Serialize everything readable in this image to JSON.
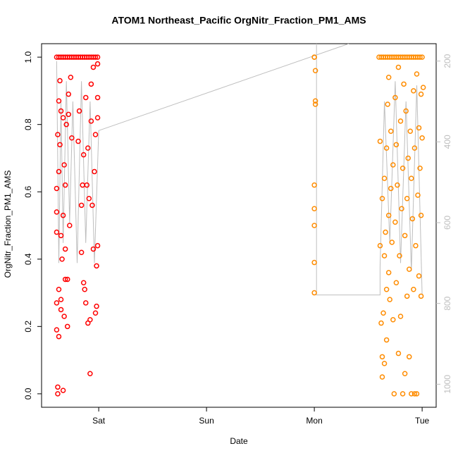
{
  "chart_data": {
    "type": "scatter",
    "title": "ATOM1 Northeast_Pacific OrgNitr_Fraction_PM1_AMS",
    "x_label": "Date",
    "y_label": "OrgNitr_Fraction_PM1_AMS",
    "xlim": [
      -0.53,
      3.13
    ],
    "xticks": [
      {
        "value": 0,
        "label": "Sat"
      },
      {
        "value": 1,
        "label": "Sun"
      },
      {
        "value": 2,
        "label": "Mon"
      },
      {
        "value": 3,
        "label": "Tue"
      }
    ],
    "ylim": [
      -0.04,
      1.04
    ],
    "yticks": [
      {
        "value": 0,
        "label": "0.0"
      },
      0.2,
      0.4,
      0.6,
      0.8,
      {
        "value": 1,
        "label": "1.0"
      }
    ],
    "y2lim": [
      1057,
      157
    ],
    "y2ticks": [
      200,
      400,
      600,
      800,
      1000
    ],
    "series": [
      {
        "type": "line",
        "axis": "y2",
        "color": "#bebebe",
        "x": [
          -0.39,
          -0.37,
          -0.35,
          -0.33,
          -0.3,
          -0.27,
          -0.24,
          -0.2,
          -0.16,
          -0.12,
          -0.08,
          -0.04,
          0,
          2.32,
          null,
          2.02,
          2.02,
          2.61,
          2.61,
          2.65,
          2.7,
          2.75,
          2.8,
          2.85,
          2.9,
          2.95,
          3.0
        ],
        "values": [
          200,
          700,
          300,
          650,
          250,
          600,
          300,
          700,
          250,
          650,
          300,
          700,
          372,
          157,
          null,
          157,
          779,
          779,
          710,
          300,
          650,
          250,
          700,
          300,
          720,
          260,
          779
        ]
      },
      {
        "type": "scatter",
        "color": "#ff0000",
        "x": [
          -0.39,
          -0.39,
          -0.39,
          -0.39,
          -0.39,
          -0.38,
          -0.38,
          -0.38,
          -0.37,
          -0.37,
          -0.37,
          -0.37,
          -0.36,
          -0.36,
          -0.35,
          -0.35,
          -0.35,
          -0.35,
          -0.34,
          -0.33,
          -0.33,
          -0.33,
          -0.32,
          -0.32,
          -0.31,
          -0.31,
          -0.31,
          -0.3,
          -0.29,
          -0.29,
          -0.28,
          -0.28,
          -0.27,
          -0.26,
          -0.25,
          -0.19,
          -0.18,
          -0.16,
          -0.16,
          -0.15,
          -0.14,
          -0.14,
          -0.13,
          -0.12,
          -0.12,
          -0.11,
          -0.1,
          -0.1,
          -0.09,
          -0.08,
          -0.08,
          -0.07,
          -0.07,
          -0.06,
          -0.05,
          -0.05,
          -0.04,
          -0.03,
          -0.03,
          -0.02,
          -0.02,
          -0.01,
          -0.01,
          -0.01,
          -0.01,
          -0.39,
          -0.37,
          -0.35,
          -0.33,
          -0.31,
          -0.29,
          -0.27,
          -0.25,
          -0.23,
          -0.21,
          -0.19,
          -0.17,
          -0.15,
          -0.13,
          -0.11,
          -0.09,
          -0.07,
          -0.05,
          -0.03,
          -0.01
        ],
        "values": [
          0.27,
          0.48,
          0.54,
          0.61,
          0.19,
          0.77,
          0.02,
          0.0,
          0.17,
          0.31,
          0.66,
          0.87,
          0.74,
          0.93,
          0.84,
          0.28,
          0.25,
          0.47,
          0.4,
          0.53,
          0.01,
          0.82,
          0.23,
          0.68,
          0.34,
          0.43,
          0.62,
          0.8,
          0.34,
          0.2,
          0.89,
          0.83,
          0.5,
          0.94,
          0.76,
          0.75,
          0.84,
          0.56,
          0.42,
          0.62,
          0.33,
          0.71,
          0.31,
          0.88,
          0.27,
          0.62,
          0.21,
          0.73,
          0.58,
          0.22,
          0.06,
          0.92,
          0.81,
          0.56,
          0.43,
          0.97,
          0.66,
          0.77,
          0.24,
          0.38,
          0.26,
          0.82,
          0.44,
          0.98,
          0.88,
          1,
          1,
          1,
          1,
          1,
          1,
          1,
          1,
          1,
          1,
          1,
          1,
          1,
          1,
          1,
          1,
          1,
          1,
          1,
          1
        ]
      },
      {
        "type": "scatter",
        "color": "#ff8c00",
        "x": [
          2.0,
          2.0,
          2.01,
          2.01,
          2.01,
          2.0,
          2.0,
          2.0,
          2.0,
          2.0,
          2.61,
          2.61,
          2.62,
          2.63,
          2.63,
          2.63,
          2.64,
          2.65,
          2.65,
          2.65,
          2.66,
          2.67,
          2.67,
          2.67,
          2.68,
          2.69,
          2.69,
          2.69,
          2.7,
          2.71,
          2.71,
          2.72,
          2.73,
          2.73,
          2.74,
          2.75,
          2.75,
          2.76,
          2.76,
          2.77,
          2.78,
          2.78,
          2.79,
          2.8,
          2.8,
          2.81,
          2.82,
          2.82,
          2.83,
          2.84,
          2.84,
          2.85,
          2.86,
          2.86,
          2.87,
          2.88,
          2.88,
          2.89,
          2.9,
          2.9,
          2.91,
          2.92,
          2.92,
          2.93,
          2.93,
          2.94,
          2.95,
          2.95,
          2.96,
          2.97,
          2.97,
          2.98,
          2.99,
          2.99,
          2.99,
          3.0,
          3.01,
          2.6,
          2.62,
          2.64,
          2.66,
          2.68,
          2.7,
          2.72,
          2.74,
          2.76,
          2.78,
          2.8,
          2.82,
          2.84,
          2.86,
          2.88,
          2.9,
          2.92,
          2.94,
          2.96,
          2.98,
          3.0
        ],
        "values": [
          1,
          1,
          0.96,
          0.87,
          0.86,
          0.62,
          0.55,
          0.5,
          0.39,
          0.3,
          0.75,
          0.44,
          0.21,
          0.58,
          0.05,
          0.11,
          0.24,
          0.64,
          0.41,
          0.09,
          0.48,
          0.73,
          0.31,
          0.16,
          0.86,
          0.53,
          0.36,
          0.94,
          0.28,
          0.61,
          0.78,
          0.45,
          0.22,
          0.68,
          0.0,
          0.88,
          0.51,
          0.33,
          0.74,
          0.62,
          0.12,
          0.97,
          0.41,
          0.81,
          0.23,
          0.55,
          0.67,
          0.0,
          0.92,
          0.06,
          0.47,
          0.84,
          0.58,
          0.29,
          0.7,
          0.37,
          0.11,
          0.78,
          0.0,
          0.64,
          0.52,
          0.9,
          0.31,
          0.0,
          0.73,
          0.44,
          0.95,
          0.0,
          0.59,
          0.79,
          0.35,
          0.67,
          0.89,
          0.29,
          0.53,
          0.76,
          0.91,
          1,
          1,
          1,
          1,
          1,
          1,
          1,
          1,
          1,
          1,
          1,
          1,
          1,
          1,
          1,
          1,
          1,
          1,
          1,
          1,
          1
        ]
      }
    ]
  }
}
